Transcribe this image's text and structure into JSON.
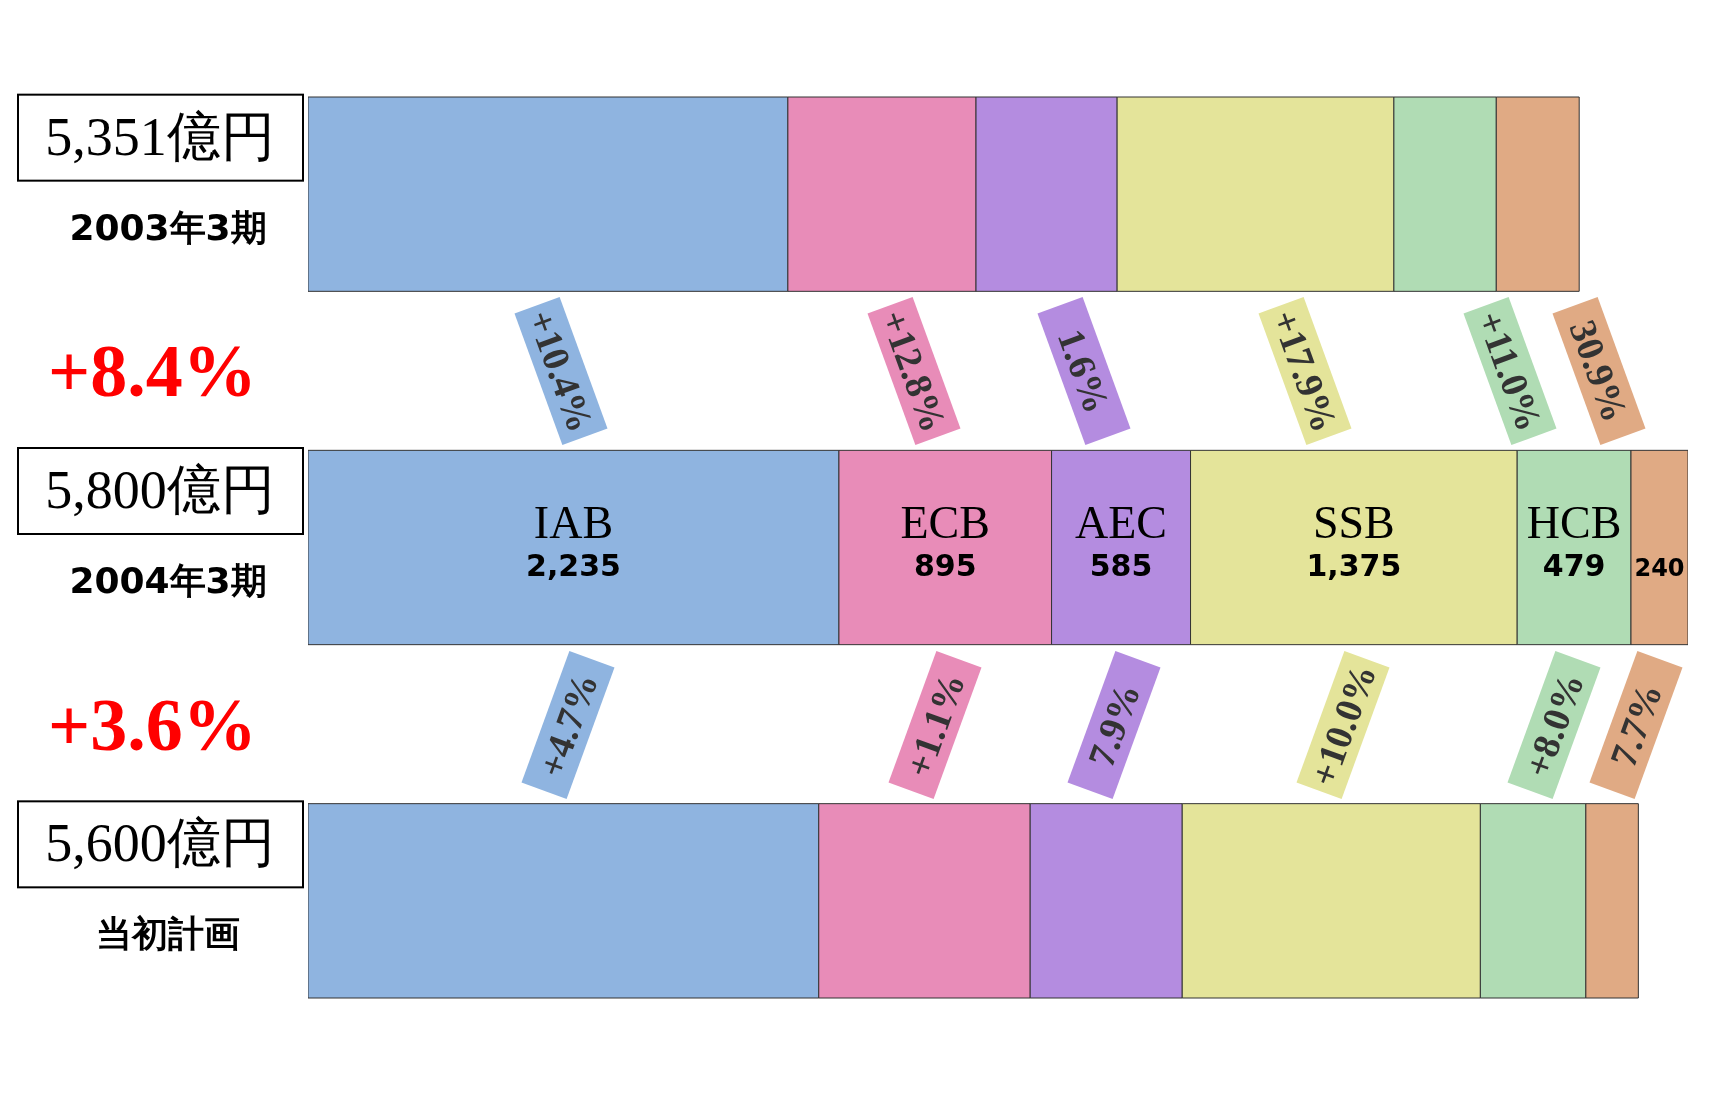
{
  "chart_data": {
    "type": "bar",
    "orientation": "horizontal",
    "stacked": true,
    "tick_labels": "y",
    "categories": [
      "2003年3期",
      "2004年3期",
      "当初計画"
    ],
    "series": [
      {
        "name": "IAB",
        "color": "#8fb4e0",
        "values": [
          2020,
          2235,
          2150
        ],
        "value_labels": [
          null,
          "2,235",
          null
        ]
      },
      {
        "name": "ECB",
        "color": "#e88cb8",
        "values": [
          792,
          895,
          890
        ],
        "value_labels": [
          null,
          "895",
          null
        ]
      },
      {
        "name": "AEC",
        "color": "#b48ce0",
        "values": [
          594,
          585,
          640
        ],
        "value_labels": [
          null,
          "585",
          null
        ]
      },
      {
        "name": "SSB",
        "color": "#e4e49a",
        "values": [
          1165,
          1375,
          1255
        ],
        "value_labels": [
          null,
          "1,375",
          null
        ]
      },
      {
        "name": "HCB",
        "color": "#b0dcb4",
        "values": [
          431,
          479,
          444
        ],
        "value_labels": [
          null,
          "479",
          null
        ]
      },
      {
        "color": "#e0aa84",
        "values": [
          349,
          240,
          221
        ],
        "value_labels": [
          null,
          "240",
          null
        ]
      }
    ],
    "annotations": [
      "5,351億円",
      "+8.4%",
      "+10.4%",
      "+12.8%",
      "1.6%",
      "+17.9%",
      "+11.0%",
      "30.9%",
      "5,800億円",
      "+3.6%",
      "+4.7%",
      "+1.1%",
      "7.9%",
      "+10.0%",
      "+8.0%",
      "7.7%",
      "5,600億円"
    ]
  }
}
